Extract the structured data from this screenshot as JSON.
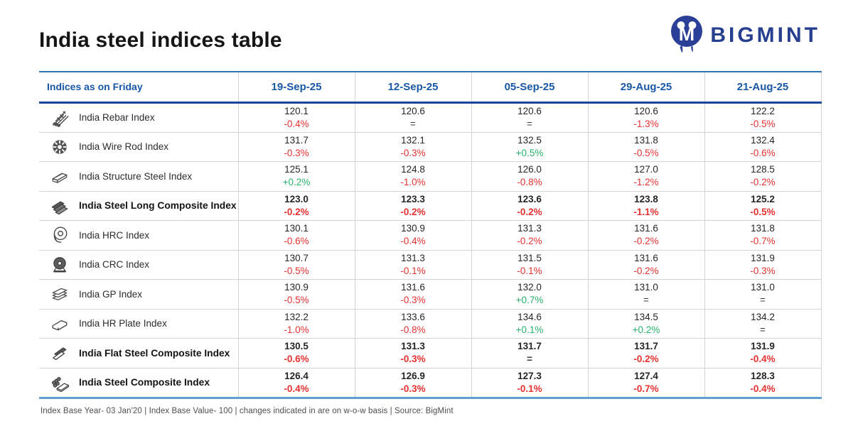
{
  "page": {
    "title": "India steel indices table",
    "brand": "BIGMINT",
    "footnote": "Index Base Year- 03 Jan'20 | Index Base Value- 100 | changes indicated in are on w-o-w basis | Source: BigMint"
  },
  "colors": {
    "header_blue": "#1857a6",
    "rule_dark_blue": "#17499b",
    "rule_top_blue": "#2e74b5",
    "rule_bottom_blue": "#649fd4",
    "negative_red": "#e63230",
    "positive_green": "#27b26b",
    "brand_blue": "#26408f"
  },
  "chart_data": {
    "type": "table",
    "title": "India steel indices table",
    "corner_label": "Indices as on Friday",
    "columns": [
      "19-Sep-25",
      "12-Sep-25",
      "05-Sep-25",
      "29-Aug-25",
      "21-Aug-25"
    ],
    "rows": [
      {
        "name": "India Rebar Index",
        "icon": "rebar-icon",
        "bold": false,
        "cells": [
          {
            "value": "120.1",
            "change": "-0.4%",
            "dir": "down"
          },
          {
            "value": "120.6",
            "change": "=",
            "dir": "eq"
          },
          {
            "value": "120.6",
            "change": "=",
            "dir": "eq"
          },
          {
            "value": "120.6",
            "change": "-1.3%",
            "dir": "down"
          },
          {
            "value": "122.2",
            "change": "-0.5%",
            "dir": "down"
          }
        ]
      },
      {
        "name": "India Wire Rod Index",
        "icon": "wire-rod-icon",
        "bold": false,
        "cells": [
          {
            "value": "131.7",
            "change": "-0.3%",
            "dir": "down"
          },
          {
            "value": "132.1",
            "change": "-0.3%",
            "dir": "down"
          },
          {
            "value": "132.5",
            "change": "+0.5%",
            "dir": "up"
          },
          {
            "value": "131.8",
            "change": "-0.5%",
            "dir": "down"
          },
          {
            "value": "132.4",
            "change": "-0.6%",
            "dir": "down"
          }
        ]
      },
      {
        "name": "India Structure Steel Index",
        "icon": "structure-steel-icon",
        "bold": false,
        "cells": [
          {
            "value": "125.1",
            "change": "+0.2%",
            "dir": "up"
          },
          {
            "value": "124.8",
            "change": "-1.0%",
            "dir": "down"
          },
          {
            "value": "126.0",
            "change": "-0.8%",
            "dir": "down"
          },
          {
            "value": "127.0",
            "change": "-1.2%",
            "dir": "down"
          },
          {
            "value": "128.5",
            "change": "-0.2%",
            "dir": "down"
          }
        ]
      },
      {
        "name": "India Steel Long Composite Index",
        "icon": "long-composite-icon",
        "bold": true,
        "cells": [
          {
            "value": "123.0",
            "change": "-0.2%",
            "dir": "down"
          },
          {
            "value": "123.3",
            "change": "-0.2%",
            "dir": "down"
          },
          {
            "value": "123.6",
            "change": "-0.2%",
            "dir": "down"
          },
          {
            "value": "123.8",
            "change": "-1.1%",
            "dir": "down"
          },
          {
            "value": "125.2",
            "change": "-0.5%",
            "dir": "down"
          }
        ]
      },
      {
        "name": "India HRC Index",
        "icon": "hrc-coil-icon",
        "bold": false,
        "cells": [
          {
            "value": "130.1",
            "change": "-0.6%",
            "dir": "down"
          },
          {
            "value": "130.9",
            "change": "-0.4%",
            "dir": "down"
          },
          {
            "value": "131.3",
            "change": "-0.2%",
            "dir": "down"
          },
          {
            "value": "131.6",
            "change": "-0.2%",
            "dir": "down"
          },
          {
            "value": "131.8",
            "change": "-0.7%",
            "dir": "down"
          }
        ]
      },
      {
        "name": "India CRC Index",
        "icon": "crc-coil-icon",
        "bold": false,
        "cells": [
          {
            "value": "130.7",
            "change": "-0.5%",
            "dir": "down"
          },
          {
            "value": "131.3",
            "change": "-0.1%",
            "dir": "down"
          },
          {
            "value": "131.5",
            "change": "-0.1%",
            "dir": "down"
          },
          {
            "value": "131.6",
            "change": "-0.2%",
            "dir": "down"
          },
          {
            "value": "131.9",
            "change": "-0.3%",
            "dir": "down"
          }
        ]
      },
      {
        "name": "India GP Index",
        "icon": "gp-sheets-icon",
        "bold": false,
        "cells": [
          {
            "value": "130.9",
            "change": "-0.5%",
            "dir": "down"
          },
          {
            "value": "131.6",
            "change": "-0.3%",
            "dir": "down"
          },
          {
            "value": "132.0",
            "change": "+0.7%",
            "dir": "up"
          },
          {
            "value": "131.0",
            "change": "=",
            "dir": "eq"
          },
          {
            "value": "131.0",
            "change": "=",
            "dir": "eq"
          }
        ]
      },
      {
        "name": "India HR Plate Index",
        "icon": "hr-plate-icon",
        "bold": false,
        "cells": [
          {
            "value": "132.2",
            "change": "-1.0%",
            "dir": "down"
          },
          {
            "value": "133.6",
            "change": "-0.8%",
            "dir": "down"
          },
          {
            "value": "134.6",
            "change": "+0.1%",
            "dir": "up"
          },
          {
            "value": "134.5",
            "change": "+0.2%",
            "dir": "up"
          },
          {
            "value": "134.2",
            "change": "=",
            "dir": "eq"
          }
        ]
      },
      {
        "name": "India Flat Steel Composite Index",
        "icon": "flat-composite-icon",
        "bold": true,
        "cells": [
          {
            "value": "130.5",
            "change": "-0.6%",
            "dir": "down"
          },
          {
            "value": "131.3",
            "change": "-0.3%",
            "dir": "down"
          },
          {
            "value": "131.7",
            "change": "=",
            "dir": "eq"
          },
          {
            "value": "131.7",
            "change": "-0.2%",
            "dir": "down"
          },
          {
            "value": "131.9",
            "change": "-0.4%",
            "dir": "down"
          }
        ]
      },
      {
        "name": "India Steel Composite Index",
        "icon": "steel-composite-icon",
        "bold": true,
        "cells": [
          {
            "value": "126.4",
            "change": "-0.4%",
            "dir": "down"
          },
          {
            "value": "126.9",
            "change": "-0.3%",
            "dir": "down"
          },
          {
            "value": "127.3",
            "change": "-0.1%",
            "dir": "down"
          },
          {
            "value": "127.4",
            "change": "-0.7%",
            "dir": "down"
          },
          {
            "value": "128.3",
            "change": "-0.4%",
            "dir": "down"
          }
        ]
      }
    ]
  }
}
